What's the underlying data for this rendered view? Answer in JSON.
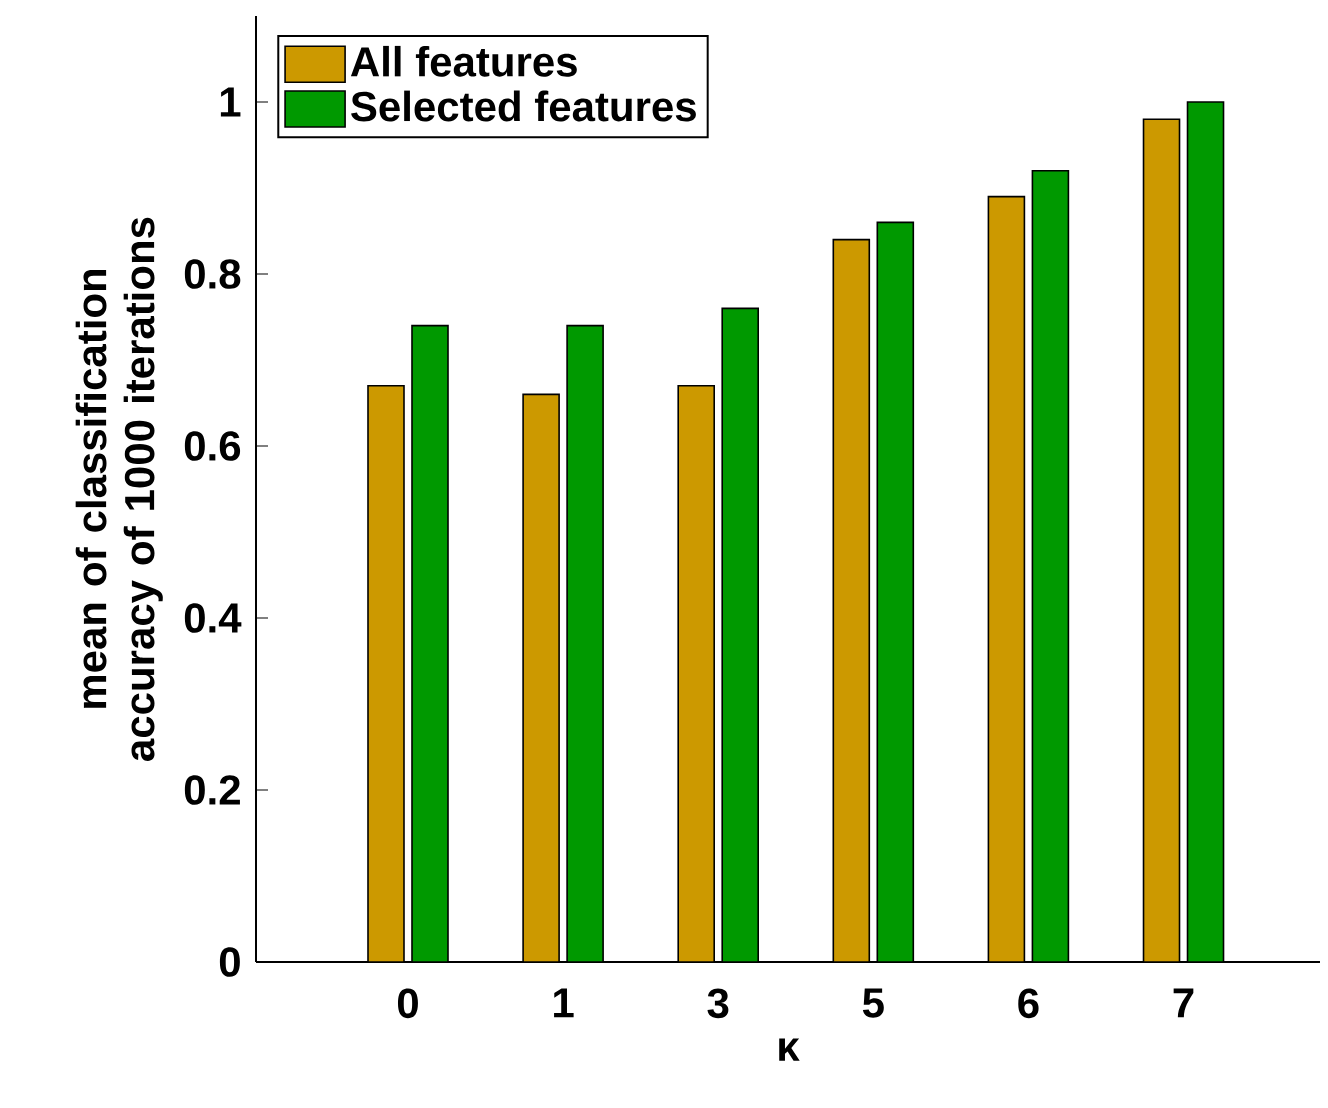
{
  "chart_data": {
    "type": "bar",
    "xlabel": "κ",
    "ylabel": "mean of classification accuracy of 1000 iterations",
    "categories": [
      "0",
      "1",
      "3",
      "5",
      "6",
      "7"
    ],
    "series": [
      {
        "name": "All features",
        "color": "#cc9900",
        "values": [
          0.67,
          0.66,
          0.67,
          0.84,
          0.89,
          0.98
        ]
      },
      {
        "name": "Selected features",
        "color": "#009900",
        "values": [
          0.74,
          0.74,
          0.76,
          0.86,
          0.92,
          1.0
        ]
      }
    ],
    "ylim": [
      0,
      1.1
    ],
    "yticks": [
      0,
      0.2,
      0.4,
      0.6,
      0.8,
      1
    ],
    "grid": false,
    "legend": "top left"
  }
}
